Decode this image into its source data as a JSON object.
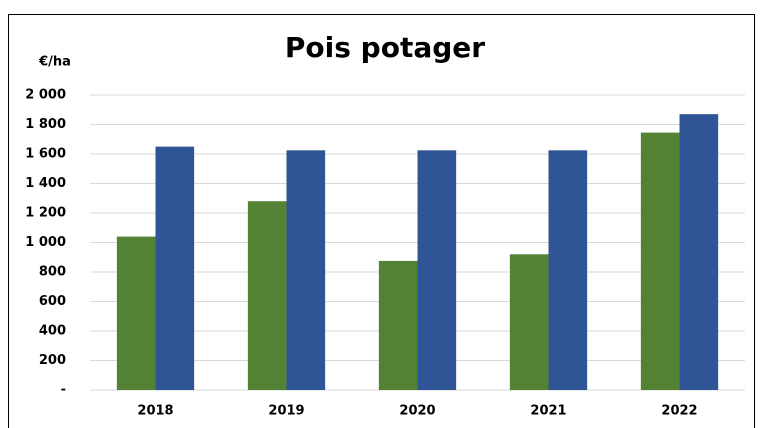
{
  "chart_data": {
    "type": "bar",
    "title": "Pois potager",
    "y_label": "€/ha",
    "categories": [
      "2018",
      "2019",
      "2020",
      "2021",
      "2022"
    ],
    "series": [
      {
        "color": "#548235",
        "values": [
          1040,
          1280,
          875,
          920,
          1745
        ]
      },
      {
        "color": "#2f5597",
        "values": [
          1650,
          1625,
          1625,
          1625,
          1870
        ]
      }
    ],
    "ylim": [
      0,
      2000
    ],
    "yticks": [
      {
        "value": 0,
        "label": "-"
      },
      200,
      400,
      600,
      800,
      {
        "value": 1000,
        "label": "1 000"
      },
      {
        "value": 1200,
        "label": "1 200"
      },
      {
        "value": 1400,
        "label": "1 400"
      },
      {
        "value": 1600,
        "label": "1 600"
      },
      {
        "value": 1800,
        "label": "1 800"
      },
      {
        "value": 2000,
        "label": "2 000"
      }
    ],
    "grid": true
  }
}
